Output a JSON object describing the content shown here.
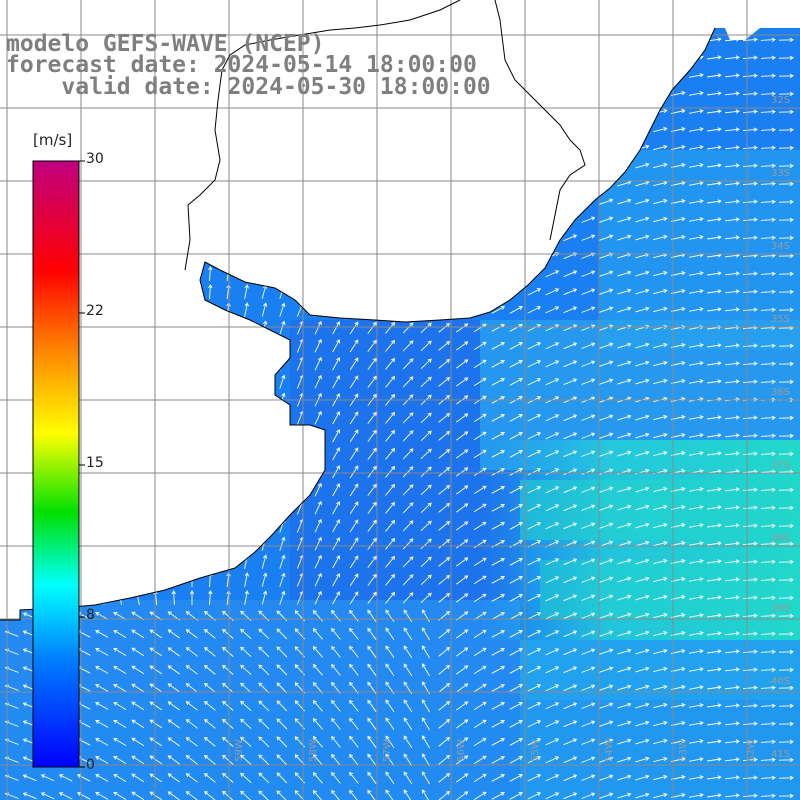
{
  "title": {
    "line1": "modelo GEFS-WAVE (NCEP)",
    "line2": "forecast date: 2024-05-14 18:00:00",
    "line3": "    valid date: 2024-05-30 18:00:00"
  },
  "colorbar": {
    "unit": "[m/s]",
    "ticks": [
      "30",
      "22",
      "15",
      "8",
      "0"
    ],
    "colors": [
      "#c00080",
      "#ff0000",
      "#ff8c00",
      "#ffff00",
      "#00e000",
      "#00ffff",
      "#0080ff",
      "#0000ff"
    ]
  },
  "lat_labels": [
    "32S",
    "33S",
    "34S",
    "35S",
    "36S",
    "37S",
    "38S",
    "39S",
    "40S",
    "41S"
  ],
  "lon_labels": [
    "59W",
    "58W",
    "57W",
    "56W",
    "55W",
    "54W",
    "53W",
    "52W"
  ],
  "field_colors": {
    "ocean_main": "#1a7ff0",
    "ocean_deep": "#1f6ae8",
    "ocean_light": "#2ea6ee",
    "ocean_cyan": "#23d8d0",
    "land": "#ffffff",
    "grid": "#8a8a8a",
    "coast": "#000000",
    "arrow": "#ffffff"
  }
}
